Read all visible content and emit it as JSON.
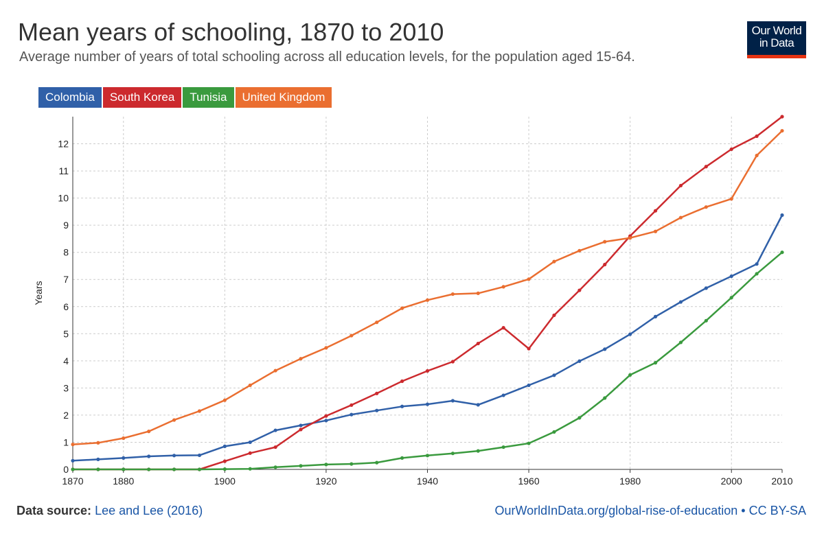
{
  "header": {
    "title": "Mean years of schooling, 1870 to 2010",
    "subtitle": "Average number of years of total schooling across all education levels, for the population aged 15-64.",
    "logo_line1": "Our World",
    "logo_line2": "in Data"
  },
  "footer": {
    "source_label": "Data source:",
    "source_text": "Lee and Lee (2016)",
    "link_text": "OurWorldInData.org/global-rise-of-education",
    "separator": "•",
    "license": "CC BY-SA"
  },
  "colors": {
    "Colombia": "#3060a8",
    "South Korea": "#cc2a2e",
    "Tunisia": "#3a9a3e",
    "United Kingdom": "#ea6e30",
    "grid": "#cccccc",
    "axis": "#333333"
  },
  "chart_data": {
    "type": "line",
    "title": "Mean years of schooling, 1870 to 2010",
    "ylabel": "Years",
    "xlabel": "",
    "xlim": [
      1870,
      2010
    ],
    "ylim": [
      0,
      13
    ],
    "grid": true,
    "legend_position": "top-left",
    "x_ticks": [
      1870,
      1880,
      1900,
      1920,
      1940,
      1960,
      1980,
      2000,
      2010
    ],
    "y_ticks": [
      0,
      1,
      2,
      3,
      4,
      5,
      6,
      7,
      8,
      9,
      10,
      11,
      12
    ],
    "x": [
      1870,
      1875,
      1880,
      1885,
      1890,
      1895,
      1900,
      1905,
      1910,
      1915,
      1920,
      1925,
      1930,
      1935,
      1940,
      1945,
      1950,
      1955,
      1960,
      1965,
      1970,
      1975,
      1980,
      1985,
      1990,
      1995,
      2000,
      2005,
      2010
    ],
    "series": [
      {
        "name": "Colombia",
        "values": [
          0.32,
          0.37,
          0.42,
          0.48,
          0.51,
          0.52,
          0.85,
          1.0,
          1.44,
          1.62,
          1.8,
          2.02,
          2.17,
          2.32,
          2.4,
          2.53,
          2.38,
          2.73,
          3.1,
          3.47,
          3.99,
          4.43,
          4.98,
          5.63,
          6.17,
          6.68,
          7.12,
          7.57,
          9.37
        ]
      },
      {
        "name": "South Korea",
        "values": [
          0,
          0,
          0,
          0,
          0,
          0,
          0.3,
          0.6,
          0.82,
          1.47,
          1.97,
          2.37,
          2.8,
          3.25,
          3.63,
          3.97,
          4.64,
          5.22,
          4.45,
          5.68,
          6.6,
          7.55,
          8.6,
          9.53,
          10.46,
          11.16,
          11.8,
          12.28,
          13.0
        ]
      },
      {
        "name": "Tunisia",
        "values": [
          0,
          0,
          0,
          0,
          0,
          0,
          0.01,
          0.02,
          0.08,
          0.13,
          0.18,
          0.2,
          0.25,
          0.42,
          0.51,
          0.59,
          0.68,
          0.82,
          0.96,
          1.38,
          1.9,
          2.63,
          3.48,
          3.93,
          4.68,
          5.48,
          6.33,
          7.21,
          8.0
        ]
      },
      {
        "name": "United Kingdom",
        "values": [
          0.92,
          0.98,
          1.15,
          1.4,
          1.82,
          2.15,
          2.55,
          3.1,
          3.64,
          4.08,
          4.48,
          4.93,
          5.42,
          5.94,
          6.24,
          6.46,
          6.49,
          6.73,
          7.01,
          7.66,
          8.06,
          8.39,
          8.53,
          8.77,
          9.28,
          9.67,
          9.97,
          11.57,
          12.48
        ]
      }
    ]
  }
}
